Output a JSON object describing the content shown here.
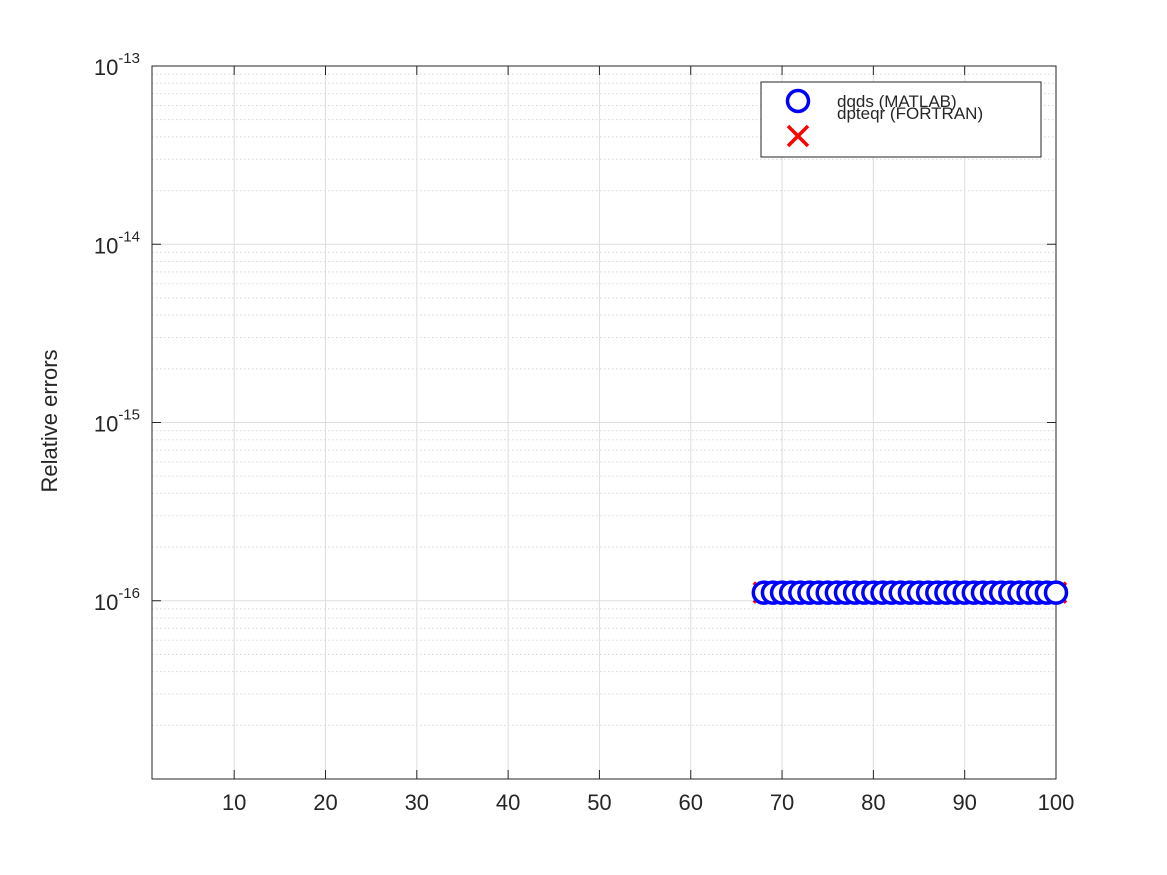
{
  "chart_data": {
    "type": "scatter",
    "ylabel": "Relative errors",
    "xlabel": "",
    "title": "",
    "xlim": [
      1,
      100
    ],
    "ylim": [
      1e-17,
      1e-13
    ],
    "yscale": "log",
    "grid": true,
    "minor_grid": true,
    "legend_position": "top-right",
    "x_ticks": [
      10,
      20,
      30,
      40,
      50,
      60,
      70,
      80,
      90,
      100
    ],
    "x_tick_labels": [
      "10",
      "20",
      "30",
      "40",
      "50",
      "60",
      "70",
      "80",
      "90",
      "100"
    ],
    "y_ticks": [
      {
        "value": 1e-16,
        "base": "10",
        "exp": "-16"
      },
      {
        "value": 1e-15,
        "base": "10",
        "exp": "-15"
      },
      {
        "value": 1e-14,
        "base": "10",
        "exp": "-14"
      },
      {
        "value": 1e-13,
        "base": "10",
        "exp": "-13"
      }
    ],
    "series": [
      {
        "name": "dqds (MATLAB)",
        "marker": "circle",
        "color": "#0000ff",
        "x_start": 68,
        "x_end": 100,
        "y_value": 1.11e-16
      },
      {
        "name": "dpteqr (FORTRAN)",
        "marker": "x",
        "color": "#ff0000",
        "x_start": 68,
        "x_end": 100,
        "y_value": 1.11e-16
      }
    ]
  }
}
